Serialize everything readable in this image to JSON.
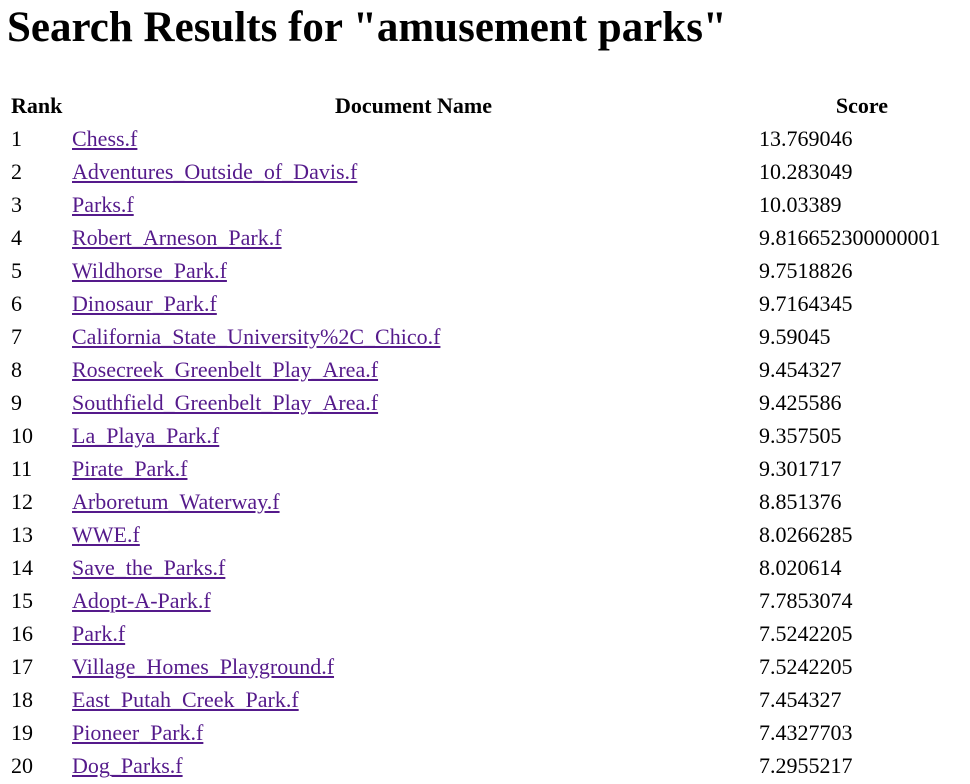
{
  "page": {
    "title": "Search Results for \"amusement parks\""
  },
  "table": {
    "headers": {
      "rank": "Rank",
      "document": "Document Name",
      "score": "Score"
    },
    "rows": [
      {
        "rank": "1",
        "name": "Chess.f",
        "score": "13.769046"
      },
      {
        "rank": "2",
        "name": "Adventures_Outside_of_Davis.f",
        "score": "10.283049"
      },
      {
        "rank": "3",
        "name": "Parks.f",
        "score": "10.03389"
      },
      {
        "rank": "4",
        "name": "Robert_Arneson_Park.f",
        "score": "9.816652300000001"
      },
      {
        "rank": "5",
        "name": "Wildhorse_Park.f",
        "score": "9.7518826"
      },
      {
        "rank": "6",
        "name": "Dinosaur_Park.f",
        "score": "9.7164345"
      },
      {
        "rank": "7",
        "name": "California_State_University%2C_Chico.f",
        "score": "9.59045"
      },
      {
        "rank": "8",
        "name": "Rosecreek_Greenbelt_Play_Area.f",
        "score": "9.454327"
      },
      {
        "rank": "9",
        "name": "Southfield_Greenbelt_Play_Area.f",
        "score": "9.425586"
      },
      {
        "rank": "10",
        "name": "La_Playa_Park.f",
        "score": "9.357505"
      },
      {
        "rank": "11",
        "name": "Pirate_Park.f",
        "score": "9.301717"
      },
      {
        "rank": "12",
        "name": "Arboretum_Waterway.f",
        "score": "8.851376"
      },
      {
        "rank": "13",
        "name": "WWE.f",
        "score": "8.0266285"
      },
      {
        "rank": "14",
        "name": "Save_the_Parks.f",
        "score": "8.020614"
      },
      {
        "rank": "15",
        "name": "Adopt-A-Park.f",
        "score": "7.7853074"
      },
      {
        "rank": "16",
        "name": "Park.f",
        "score": "7.5242205"
      },
      {
        "rank": "17",
        "name": "Village_Homes_Playground.f",
        "score": "7.5242205"
      },
      {
        "rank": "18",
        "name": "East_Putah_Creek_Park.f",
        "score": "7.454327"
      },
      {
        "rank": "19",
        "name": "Pioneer_Park.f",
        "score": "7.4327703"
      },
      {
        "rank": "20",
        "name": "Dog_Parks.f",
        "score": "7.2955217"
      }
    ]
  },
  "colors": {
    "link_visited": "#551a8b",
    "text": "#000000",
    "background": "#ffffff"
  }
}
